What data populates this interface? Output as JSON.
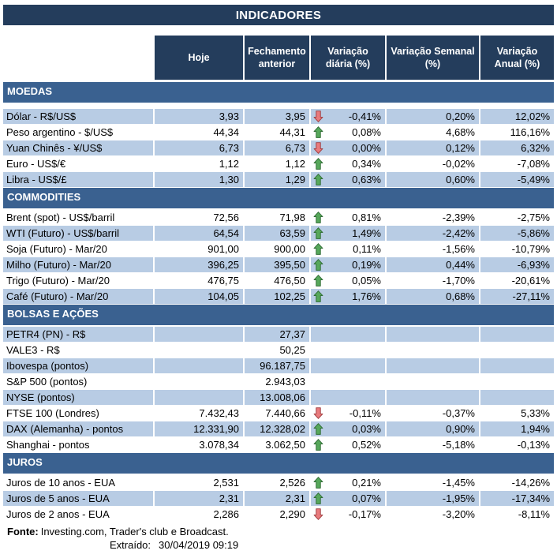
{
  "title": "INDICADORES",
  "columns": [
    "Hoje",
    "Fechamento anterior",
    "Variação diária (%)",
    "Variação Semanal (%)",
    "Variação Anual (%)"
  ],
  "sections": [
    {
      "id": "moedas",
      "name": "MOEDAS",
      "rows": [
        {
          "label": "Dólar - R$/US$",
          "hoje": "3,93",
          "fechamento": "3,95",
          "arrow": "down",
          "var_diaria": "-0,41%",
          "var_semanal": "0,20%",
          "var_anual": "12,02%",
          "shaded": true
        },
        {
          "label": "Peso argentino - $/US$",
          "hoje": "44,34",
          "fechamento": "44,31",
          "arrow": "up",
          "var_diaria": "0,08%",
          "var_semanal": "4,68%",
          "var_anual": "116,16%",
          "shaded": false
        },
        {
          "label": "Yuan Chinês - ¥/US$",
          "hoje": "6,73",
          "fechamento": "6,73",
          "arrow": "down",
          "var_diaria": "0,00%",
          "var_semanal": "0,12%",
          "var_anual": "6,32%",
          "shaded": true
        },
        {
          "label": "Euro - US$/€",
          "hoje": "1,12",
          "fechamento": "1,12",
          "arrow": "up",
          "var_diaria": "0,34%",
          "var_semanal": "-0,02%",
          "var_anual": "-7,08%",
          "shaded": false
        },
        {
          "label": "Libra - US$/£",
          "hoje": "1,30",
          "fechamento": "1,29",
          "arrow": "up",
          "var_diaria": "0,63%",
          "var_semanal": "0,60%",
          "var_anual": "-5,49%",
          "shaded": true
        }
      ]
    },
    {
      "id": "commodities",
      "name": "COMMODITIES",
      "rows": [
        {
          "label": "Brent (spot) - US$/barril",
          "hoje": "72,56",
          "fechamento": "71,98",
          "arrow": "up",
          "var_diaria": "0,81%",
          "var_semanal": "-2,39%",
          "var_anual": "-2,75%",
          "shaded": false
        },
        {
          "label": "WTI (Futuro) - US$/barril",
          "hoje": "64,54",
          "fechamento": "63,59",
          "arrow": "up",
          "var_diaria": "1,49%",
          "var_semanal": "-2,42%",
          "var_anual": "-5,86%",
          "shaded": true
        },
        {
          "label": "Soja (Futuro) - Mar/20",
          "hoje": "901,00",
          "fechamento": "900,00",
          "arrow": "up",
          "var_diaria": "0,11%",
          "var_semanal": "-1,56%",
          "var_anual": "-10,79%",
          "shaded": false
        },
        {
          "label": "Milho (Futuro) - Mar/20",
          "hoje": "396,25",
          "fechamento": "395,50",
          "arrow": "up",
          "var_diaria": "0,19%",
          "var_semanal": "0,44%",
          "var_anual": "-6,93%",
          "shaded": true
        },
        {
          "label": "Trigo (Futuro) - Mar/20",
          "hoje": "476,75",
          "fechamento": "476,50",
          "arrow": "up",
          "var_diaria": "0,05%",
          "var_semanal": "-1,70%",
          "var_anual": "-20,61%",
          "shaded": false
        },
        {
          "label": "Café (Futuro) - Mar/20",
          "hoje": "104,05",
          "fechamento": "102,25",
          "arrow": "up",
          "var_diaria": "1,76%",
          "var_semanal": "0,68%",
          "var_anual": "-27,11%",
          "shaded": true
        }
      ]
    },
    {
      "id": "bolsas-e-acoes",
      "name": "BOLSAS E AÇÕES",
      "rows": [
        {
          "label": "PETR4 (PN) - R$",
          "hoje": "",
          "fechamento": "27,37",
          "arrow": "",
          "var_diaria": "",
          "var_semanal": "",
          "var_anual": "",
          "shaded": true
        },
        {
          "label": "VALE3 - R$",
          "hoje": "",
          "fechamento": "50,25",
          "arrow": "",
          "var_diaria": "",
          "var_semanal": "",
          "var_anual": "",
          "shaded": false
        },
        {
          "label": "Ibovespa (pontos)",
          "hoje": "",
          "fechamento": "96.187,75",
          "arrow": "",
          "var_diaria": "",
          "var_semanal": "",
          "var_anual": "",
          "shaded": true
        },
        {
          "label": "S&P 500 (pontos)",
          "hoje": "",
          "fechamento": "2.943,03",
          "arrow": "",
          "var_diaria": "",
          "var_semanal": "",
          "var_anual": "",
          "shaded": false
        },
        {
          "label": "NYSE (pontos)",
          "hoje": "",
          "fechamento": "13.008,06",
          "arrow": "",
          "var_diaria": "",
          "var_semanal": "",
          "var_anual": "",
          "shaded": true
        },
        {
          "label": "FTSE 100 (Londres)",
          "hoje": "7.432,43",
          "fechamento": "7.440,66",
          "arrow": "down",
          "var_diaria": "-0,11%",
          "var_semanal": "-0,37%",
          "var_anual": "5,33%",
          "shaded": false
        },
        {
          "label": "DAX (Alemanha) - pontos",
          "hoje": "12.331,90",
          "fechamento": "12.328,02",
          "arrow": "up",
          "var_diaria": "0,03%",
          "var_semanal": "0,90%",
          "var_anual": "1,94%",
          "shaded": true
        },
        {
          "label": "Shanghai - pontos",
          "hoje": "3.078,34",
          "fechamento": "3.062,50",
          "arrow": "up",
          "var_diaria": "0,52%",
          "var_semanal": "-5,18%",
          "var_anual": "-0,13%",
          "shaded": false
        }
      ]
    },
    {
      "id": "juros",
      "name": "JUROS",
      "rows": [
        {
          "label": "Juros de 10 anos - EUA",
          "hoje": "2,531",
          "fechamento": "2,526",
          "arrow": "up",
          "var_diaria": "0,21%",
          "var_semanal": "-1,45%",
          "var_anual": "-14,26%",
          "shaded": false
        },
        {
          "label": "Juros de 5 anos - EUA",
          "hoje": "2,31",
          "fechamento": "2,31",
          "arrow": "up",
          "var_diaria": "0,07%",
          "var_semanal": "-1,95%",
          "var_anual": "-17,34%",
          "shaded": true
        },
        {
          "label": "Juros de 2 anos - EUA",
          "hoje": "2,286",
          "fechamento": "2,290",
          "arrow": "down",
          "var_diaria": "-0,17%",
          "var_semanal": "-3,20%",
          "var_anual": "-8,11%",
          "shaded": false
        }
      ]
    }
  ],
  "footer": {
    "fonte_label": "Fonte:",
    "fonte_text": "Investing.com, Trader's club e Broadcast.",
    "extraido_label": "Extraído:",
    "extraido_value": "30/04/2019 09:19"
  },
  "colors": {
    "header_navy": "#243D5C",
    "section_blue": "#3A6190",
    "row_shaded": "#B8CCE4",
    "arrow_up_fill": "#57A85B",
    "arrow_up_stroke": "#2E6B33",
    "arrow_down_fill": "#E97B7D",
    "arrow_down_stroke": "#9E3B3E"
  }
}
